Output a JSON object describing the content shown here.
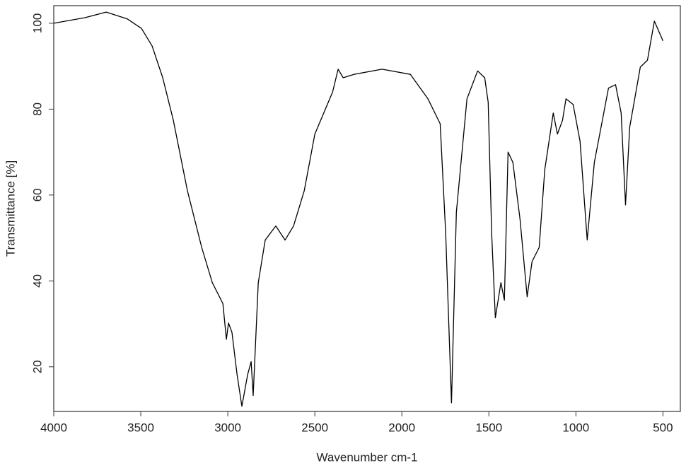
{
  "chart_data": {
    "type": "line",
    "xlabel": "Wavenumber cm-1",
    "ylabel": "Transmittance [%]",
    "xlim": [
      4000,
      400
    ],
    "ylim": [
      9.6,
      104.1
    ],
    "xticks": [
      4000,
      3500,
      3000,
      2500,
      2000,
      1500,
      1000,
      500
    ],
    "yticks": [
      20,
      40,
      60,
      80,
      100
    ],
    "grid": false,
    "series": [
      {
        "color": "#000000",
        "x": [
          4000,
          3821,
          3699,
          3577,
          3496,
          3435,
          3374,
          3313,
          3232,
          3150,
          3089,
          3028,
          3008,
          2996,
          2976,
          2947,
          2919,
          2886,
          2866,
          2854,
          2825,
          2785,
          2724,
          2671,
          2622,
          2561,
          2500,
          2398,
          2366,
          2337,
          2276,
          2114,
          1951,
          1850,
          1780,
          1748,
          1715,
          1687,
          1626,
          1565,
          1524,
          1504,
          1484,
          1463,
          1431,
          1411,
          1390,
          1362,
          1321,
          1280,
          1252,
          1211,
          1179,
          1130,
          1106,
          1077,
          1057,
          1016,
          976,
          935,
          894,
          813,
          772,
          740,
          715,
          691,
          630,
          589,
          549,
          500
        ],
        "values": [
          100,
          101.3,
          102.6,
          101,
          98.8,
          94.7,
          87.3,
          77.4,
          61,
          47.8,
          39.6,
          34.7,
          26.4,
          30.2,
          28,
          18.2,
          10.8,
          18.2,
          21.2,
          13.3,
          39.6,
          49.5,
          52.8,
          49.5,
          52.8,
          61,
          74.2,
          84,
          89.3,
          87.3,
          88.1,
          89.3,
          88.1,
          82.4,
          76.6,
          51.1,
          11.6,
          56,
          82.4,
          88.9,
          87.3,
          81.6,
          51.1,
          31.4,
          39.6,
          35.5,
          70,
          67.6,
          54.4,
          36.3,
          44.5,
          47.8,
          65.9,
          79.1,
          74.2,
          77.4,
          82.4,
          81.1,
          72.5,
          49.5,
          67.6,
          84.9,
          85.7,
          79.1,
          57.7,
          75.8,
          89.8,
          91.4,
          100.5,
          95.9
        ]
      }
    ]
  }
}
